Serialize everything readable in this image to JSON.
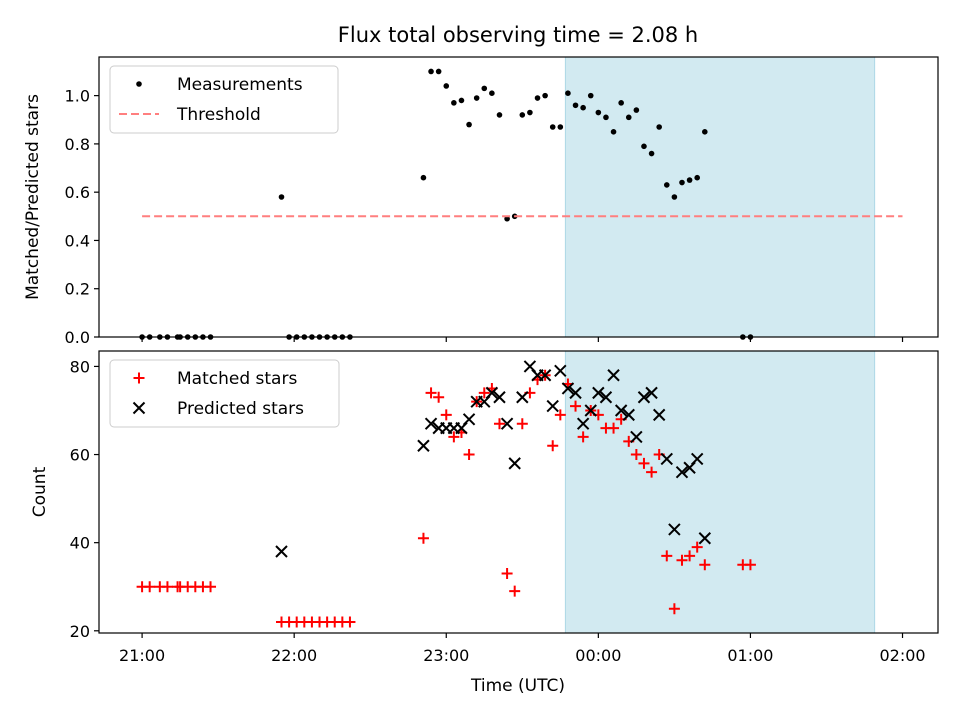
{
  "figure": {
    "title": "Flux total observing time = 2.08 h",
    "xlabel": "Time (UTC)",
    "shaded_color": "#add8e6",
    "shaded_range": [
      "23:47",
      "01:49"
    ]
  },
  "chart_data": [
    {
      "type": "scatter",
      "ylabel": "Matched/Predicted stars",
      "ylim": [
        0,
        1.16
      ],
      "yticks": [
        "0.0",
        "0.2",
        "0.4",
        "0.6",
        "0.8",
        "1.0"
      ],
      "ytick_values": [
        0,
        0.2,
        0.4,
        0.6,
        0.8,
        1.0
      ],
      "xlim": [
        "20:43",
        "02:14"
      ],
      "xticks": [],
      "legend_position": "top-left",
      "series": [
        {
          "name": "Measurements",
          "marker": "dot",
          "color": "#000000",
          "points": [
            [
              "21:00",
              0
            ],
            [
              "21:03",
              0
            ],
            [
              "21:07",
              0
            ],
            [
              "21:10",
              0
            ],
            [
              "21:14",
              0
            ],
            [
              "21:15",
              0
            ],
            [
              "21:18",
              0
            ],
            [
              "21:21",
              0
            ],
            [
              "21:24",
              0
            ],
            [
              "21:27",
              0
            ],
            [
              "21:55",
              0.58
            ],
            [
              "21:58",
              0
            ],
            [
              "22:01",
              0
            ],
            [
              "22:04",
              0
            ],
            [
              "22:07",
              0
            ],
            [
              "22:10",
              0
            ],
            [
              "22:13",
              0
            ],
            [
              "22:16",
              0
            ],
            [
              "22:19",
              0
            ],
            [
              "22:22",
              0
            ],
            [
              "22:51",
              0.66
            ],
            [
              "22:54",
              1.1
            ],
            [
              "22:57",
              1.1
            ],
            [
              "23:00",
              1.04
            ],
            [
              "23:03",
              0.97
            ],
            [
              "23:06",
              0.98
            ],
            [
              "23:09",
              0.88
            ],
            [
              "23:12",
              0.99
            ],
            [
              "23:15",
              1.03
            ],
            [
              "23:18",
              1.01
            ],
            [
              "23:21",
              0.92
            ],
            [
              "23:24",
              0.49
            ],
            [
              "23:27",
              0.5
            ],
            [
              "23:30",
              0.92
            ],
            [
              "23:33",
              0.93
            ],
            [
              "23:36",
              0.99
            ],
            [
              "23:39",
              1.0
            ],
            [
              "23:42",
              0.87
            ],
            [
              "23:45",
              0.87
            ],
            [
              "23:48",
              1.01
            ],
            [
              "23:51",
              0.96
            ],
            [
              "23:54",
              0.95
            ],
            [
              "23:57",
              1.0
            ],
            [
              "00:00",
              0.93
            ],
            [
              "00:03",
              0.91
            ],
            [
              "00:06",
              0.85
            ],
            [
              "00:09",
              0.97
            ],
            [
              "00:12",
              0.91
            ],
            [
              "00:15",
              0.94
            ],
            [
              "00:18",
              0.79
            ],
            [
              "00:21",
              0.76
            ],
            [
              "00:24",
              0.87
            ],
            [
              "00:27",
              0.63
            ],
            [
              "00:30",
              0.58
            ],
            [
              "00:33",
              0.64
            ],
            [
              "00:36",
              0.65
            ],
            [
              "00:39",
              0.66
            ],
            [
              "00:42",
              0.85
            ],
            [
              "00:57",
              0
            ],
            [
              "01:00",
              0
            ]
          ]
        },
        {
          "name": "Threshold",
          "type": "line",
          "dashed": true,
          "color": "#ff7f7f",
          "x": [
            "21:00",
            "02:00"
          ],
          "y": [
            0.5,
            0.5
          ]
        }
      ]
    },
    {
      "type": "scatter",
      "ylabel": "Count",
      "ylim": [
        19.5,
        83.5
      ],
      "yticks": [
        "20",
        "40",
        "60",
        "80"
      ],
      "ytick_values": [
        20,
        40,
        60,
        80
      ],
      "xlim": [
        "20:43",
        "02:14"
      ],
      "xticks": [
        "21:00",
        "22:00",
        "23:00",
        "00:00",
        "01:00",
        "02:00"
      ],
      "legend_position": "top-left",
      "series": [
        {
          "name": "Matched stars",
          "marker": "plus",
          "color": "#ff0000",
          "points": [
            [
              "21:00",
              30
            ],
            [
              "21:03",
              30
            ],
            [
              "21:07",
              30
            ],
            [
              "21:10",
              30
            ],
            [
              "21:14",
              30
            ],
            [
              "21:15",
              30
            ],
            [
              "21:18",
              30
            ],
            [
              "21:21",
              30
            ],
            [
              "21:24",
              30
            ],
            [
              "21:27",
              30
            ],
            [
              "21:55",
              22
            ],
            [
              "21:58",
              22
            ],
            [
              "22:01",
              22
            ],
            [
              "22:04",
              22
            ],
            [
              "22:07",
              22
            ],
            [
              "22:10",
              22
            ],
            [
              "22:13",
              22
            ],
            [
              "22:16",
              22
            ],
            [
              "22:19",
              22
            ],
            [
              "22:22",
              22
            ],
            [
              "22:51",
              41
            ],
            [
              "22:54",
              74
            ],
            [
              "22:57",
              73
            ],
            [
              "23:00",
              69
            ],
            [
              "23:03",
              64
            ],
            [
              "23:06",
              65
            ],
            [
              "23:09",
              60
            ],
            [
              "23:12",
              72
            ],
            [
              "23:15",
              74
            ],
            [
              "23:18",
              75
            ],
            [
              "23:21",
              67
            ],
            [
              "23:24",
              33
            ],
            [
              "23:27",
              29
            ],
            [
              "23:30",
              67
            ],
            [
              "23:33",
              74
            ],
            [
              "23:36",
              77
            ],
            [
              "23:39",
              78
            ],
            [
              "23:42",
              62
            ],
            [
              "23:45",
              69
            ],
            [
              "23:48",
              76
            ],
            [
              "23:51",
              71
            ],
            [
              "23:54",
              64
            ],
            [
              "23:57",
              70
            ],
            [
              "00:00",
              69
            ],
            [
              "00:03",
              66
            ],
            [
              "00:06",
              66
            ],
            [
              "00:09",
              68
            ],
            [
              "00:12",
              63
            ],
            [
              "00:15",
              60
            ],
            [
              "00:18",
              58
            ],
            [
              "00:21",
              56
            ],
            [
              "00:24",
              60
            ],
            [
              "00:27",
              37
            ],
            [
              "00:30",
              25
            ],
            [
              "00:33",
              36
            ],
            [
              "00:36",
              37
            ],
            [
              "00:39",
              39
            ],
            [
              "00:42",
              35
            ],
            [
              "00:57",
              35
            ],
            [
              "01:00",
              35
            ]
          ]
        },
        {
          "name": "Predicted stars",
          "marker": "x",
          "color": "#000000",
          "points": [
            [
              "21:55",
              38
            ],
            [
              "22:51",
              62
            ],
            [
              "22:54",
              67
            ],
            [
              "22:57",
              66
            ],
            [
              "23:00",
              66
            ],
            [
              "23:03",
              66
            ],
            [
              "23:06",
              66
            ],
            [
              "23:09",
              68
            ],
            [
              "23:12",
              72
            ],
            [
              "23:15",
              72
            ],
            [
              "23:18",
              74
            ],
            [
              "23:21",
              73
            ],
            [
              "23:24",
              67
            ],
            [
              "23:27",
              58
            ],
            [
              "23:30",
              73
            ],
            [
              "23:33",
              80
            ],
            [
              "23:36",
              78
            ],
            [
              "23:39",
              78
            ],
            [
              "23:42",
              71
            ],
            [
              "23:45",
              79
            ],
            [
              "23:48",
              75
            ],
            [
              "23:51",
              74
            ],
            [
              "23:54",
              67
            ],
            [
              "23:57",
              70
            ],
            [
              "00:00",
              74
            ],
            [
              "00:03",
              73
            ],
            [
              "00:06",
              78
            ],
            [
              "00:09",
              70
            ],
            [
              "00:12",
              69
            ],
            [
              "00:15",
              64
            ],
            [
              "00:18",
              73
            ],
            [
              "00:21",
              74
            ],
            [
              "00:24",
              69
            ],
            [
              "00:27",
              59
            ],
            [
              "00:30",
              43
            ],
            [
              "00:33",
              56
            ],
            [
              "00:36",
              57
            ],
            [
              "00:39",
              59
            ],
            [
              "00:42",
              41
            ]
          ]
        }
      ]
    }
  ]
}
